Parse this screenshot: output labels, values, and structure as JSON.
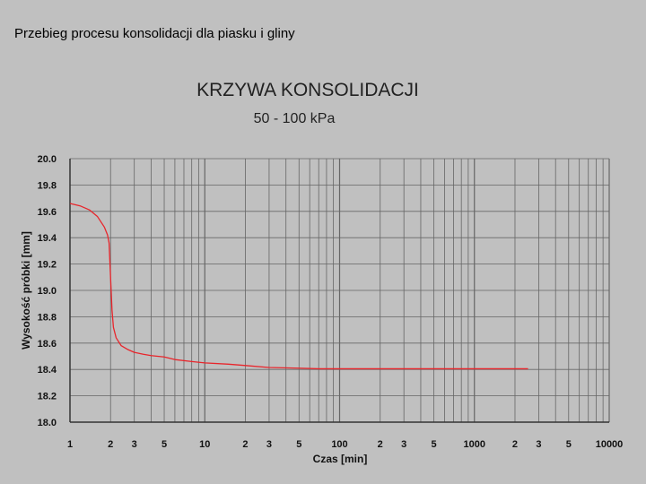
{
  "slide": {
    "caption": "Przebieg procesu konsolidacji dla piasku i gliny"
  },
  "chart_data": {
    "type": "line",
    "title": "KRZYWA KONSOLIDACJI",
    "subtitle": "50 - 100 kPa",
    "xlabel": "Czas [min]",
    "ylabel": "Wysokość próbki [mm]",
    "x_scale": "log",
    "xlim": [
      1,
      10000
    ],
    "ylim": [
      18.0,
      20.0
    ],
    "x_tick_labels": [
      {
        "value": 1,
        "label": "1"
      },
      {
        "value": 2,
        "label": "2"
      },
      {
        "value": 3,
        "label": "3"
      },
      {
        "value": 5,
        "label": "5"
      },
      {
        "value": 10,
        "label": "10"
      },
      {
        "value": 20,
        "label": "2"
      },
      {
        "value": 30,
        "label": "3"
      },
      {
        "value": 50,
        "label": "5"
      },
      {
        "value": 100,
        "label": "100"
      },
      {
        "value": 200,
        "label": "2"
      },
      {
        "value": 300,
        "label": "3"
      },
      {
        "value": 500,
        "label": "5"
      },
      {
        "value": 1000,
        "label": "1000"
      },
      {
        "value": 2000,
        "label": "2"
      },
      {
        "value": 3000,
        "label": "3"
      },
      {
        "value": 5000,
        "label": "5"
      },
      {
        "value": 10000,
        "label": "10000"
      }
    ],
    "y_tick_labels": [
      "18.0",
      "18.2",
      "18.4",
      "18.6",
      "18.8",
      "19.0",
      "19.2",
      "19.4",
      "19.6",
      "19.8",
      "20.0"
    ],
    "y_ticks": [
      18.0,
      18.2,
      18.4,
      18.6,
      18.8,
      19.0,
      19.2,
      19.4,
      19.6,
      19.8,
      20.0
    ],
    "grid": true,
    "colors": {
      "line": "#e8252b",
      "background": "#c0c0c0",
      "grid": "#666666"
    },
    "series": [
      {
        "x": [
          1,
          1.2,
          1.4,
          1.6,
          1.8,
          1.9,
          1.95,
          2.0,
          2.05,
          2.1,
          2.2,
          2.4,
          2.7,
          3.0,
          3.5,
          4.0,
          5.0,
          6.0,
          8.0,
          10,
          15,
          20,
          30,
          50,
          70,
          100,
          200,
          500,
          1000,
          2000,
          2500
        ],
        "y": [
          19.66,
          19.64,
          19.61,
          19.56,
          19.48,
          19.42,
          19.36,
          19.1,
          18.85,
          18.72,
          18.64,
          18.58,
          18.55,
          18.53,
          18.515,
          18.505,
          18.495,
          18.475,
          18.46,
          18.45,
          18.44,
          18.43,
          18.415,
          18.41,
          18.405,
          18.405,
          18.405,
          18.405,
          18.405,
          18.405,
          18.405
        ]
      }
    ]
  }
}
